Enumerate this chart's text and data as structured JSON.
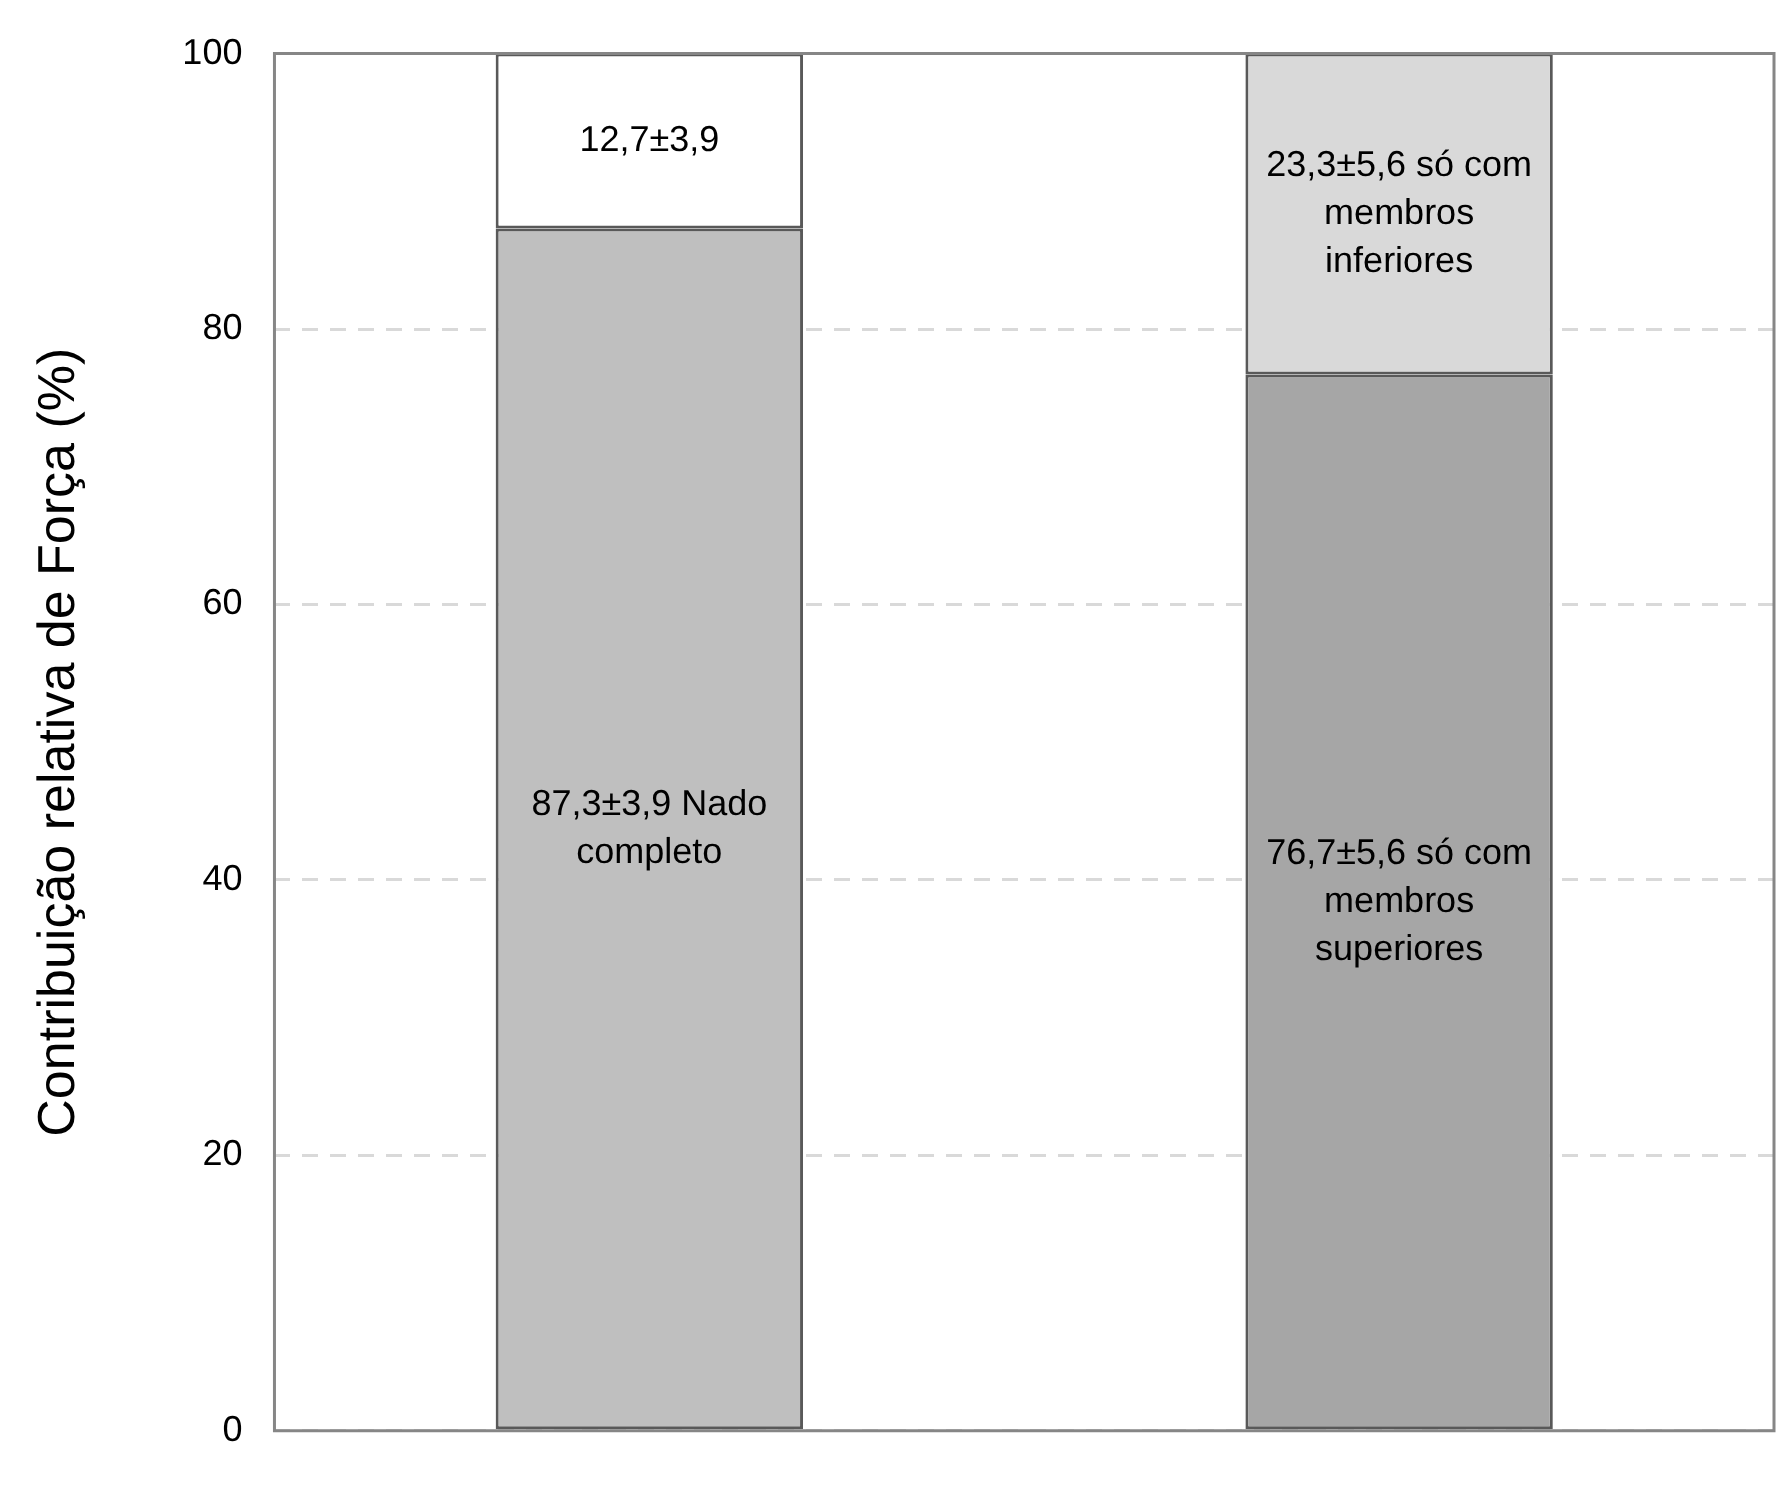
{
  "chart_data": {
    "type": "bar",
    "ylabel": "Contribuição relativa de Força (%)",
    "categories": [
      null,
      null
    ],
    "stacked": true,
    "series": [
      {
        "colors": [
          "#bfbfbf",
          "#a6a6a6"
        ],
        "values": [
          87.3,
          76.7
        ],
        "value_labels": [
          "87,3±3,9 Nado completo",
          "76,7±5,6 só com membros superiores"
        ]
      },
      {
        "colors": [
          "#ffffff",
          "#d9d9d9"
        ],
        "values": [
          12.7,
          23.3
        ],
        "value_labels": [
          "12,7±3,9",
          "23,3±5,6 só com membros inferiores"
        ]
      }
    ],
    "ylim": [
      0,
      100
    ],
    "yticks": [
      0,
      20,
      40,
      60,
      80,
      100
    ],
    "grid": "y",
    "legend": false
  }
}
